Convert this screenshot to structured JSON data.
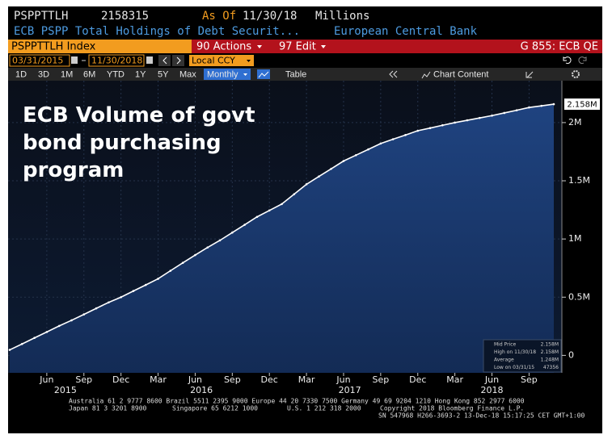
{
  "header": {
    "ticker": "PSPPTTLH",
    "value": "2158315",
    "as_of_label": "As Of",
    "as_of": "11/30/18",
    "units": "Millions",
    "description": "ECB PSPP Total Holdings of Debt Securit...",
    "source": "European Central Bank"
  },
  "menu": {
    "security": "PSPPTTLH Index",
    "actions": "90 Actions",
    "edit": "97 Edit",
    "page": "G 855: ECB QE"
  },
  "controls": {
    "start_date": "03/31/2015",
    "end_date": "11/30/2018",
    "currency": "Local CCY"
  },
  "toolbar": {
    "ranges": [
      "1D",
      "3D",
      "1M",
      "6M",
      "YTD",
      "1Y",
      "5Y",
      "Max"
    ],
    "frequency": "Monthly",
    "table": "Table",
    "chart_content": "Chart Content"
  },
  "chart_data": {
    "type": "area",
    "title": "ECB Volume of govt bond purchasing program",
    "x": [
      "2015-03",
      "2015-04",
      "2015-05",
      "2015-06",
      "2015-07",
      "2015-08",
      "2015-09",
      "2015-10",
      "2015-11",
      "2015-12",
      "2016-01",
      "2016-02",
      "2016-03",
      "2016-04",
      "2016-05",
      "2016-06",
      "2016-07",
      "2016-08",
      "2016-09",
      "2016-10",
      "2016-11",
      "2016-12",
      "2017-01",
      "2017-02",
      "2017-03",
      "2017-04",
      "2017-05",
      "2017-06",
      "2017-07",
      "2017-08",
      "2017-09",
      "2017-10",
      "2017-11",
      "2017-12",
      "2018-01",
      "2018-02",
      "2018-03",
      "2018-04",
      "2018-05",
      "2018-06",
      "2018-07",
      "2018-08",
      "2018-09",
      "2018-10",
      "2018-11"
    ],
    "series": [
      {
        "name": "PSPPTTLH Index",
        "color": "#ffffff",
        "values": [
          47356,
          98000,
          150000,
          201000,
          253000,
          301000,
          352000,
          404000,
          455000,
          500000,
          553000,
          605000,
          658000,
          727000,
          795000,
          862000,
          927000,
          988000,
          1055000,
          1122000,
          1190000,
          1245000,
          1300000,
          1385000,
          1470000,
          1537000,
          1603000,
          1670000,
          1720000,
          1770000,
          1820000,
          1857000,
          1893000,
          1930000,
          1953000,
          1977000,
          2000000,
          2020000,
          2040000,
          2060000,
          2083000,
          2106000,
          2130000,
          2144000,
          2158315
        ],
        "value_labels": {
          "44": "2.158M"
        }
      }
    ],
    "ylim": [
      -150000,
      2360000
    ],
    "yticks": [
      {
        "value": 0,
        "label": "0"
      },
      {
        "value": 500000,
        "label": "0.5M"
      },
      {
        "value": 1000000,
        "label": "1M"
      },
      {
        "value": 1500000,
        "label": "1.5M"
      },
      {
        "value": 2000000,
        "label": "2M"
      }
    ],
    "xticks": [
      {
        "value": "2015-06",
        "label": "Jun"
      },
      {
        "value": "2015-09",
        "label": "Sep"
      },
      {
        "value": "2015-12",
        "label": "Dec"
      },
      {
        "value": "2016-03",
        "label": "Mar"
      },
      {
        "value": "2016-06",
        "label": "Jun"
      },
      {
        "value": "2016-09",
        "label": "Sep"
      },
      {
        "value": "2016-12",
        "label": "Dec"
      },
      {
        "value": "2017-03",
        "label": "Mar"
      },
      {
        "value": "2017-06",
        "label": "Jun"
      },
      {
        "value": "2017-09",
        "label": "Sep"
      },
      {
        "value": "2017-12",
        "label": "Dec"
      },
      {
        "value": "2018-03",
        "label": "Mar"
      },
      {
        "value": "2018-06",
        "label": "Jun"
      },
      {
        "value": "2018-09",
        "label": "Sep"
      }
    ],
    "year_labels": [
      "2015",
      "2016",
      "2017",
      "2018"
    ],
    "grid": true,
    "stats": [
      {
        "label": "Mid Price",
        "value": "2.158M"
      },
      {
        "label": "High on 11/30/18",
        "value": "2.158M"
      },
      {
        "label": "Average",
        "value": "1.248M"
      },
      {
        "label": "Low on 03/31/15",
        "value": "47356"
      }
    ]
  },
  "footer": {
    "line1": "Australia 61 2 9777 8600 Brazil 5511 2395 9000 Europe 44 20 7330 7500 Germany 49 69 9204 1210 Hong Kong 852 2977 6000",
    "line2": [
      "Japan 81 3 3201 8900",
      "Singapore 65 6212 1000",
      "U.S. 1 212 318 2000",
      "Copyright 2018 Bloomberg Finance L.P."
    ],
    "line3": "SN 547968 H266-3693-2 13-Dec-18 15:17:25 CET  GMT+1:00"
  }
}
